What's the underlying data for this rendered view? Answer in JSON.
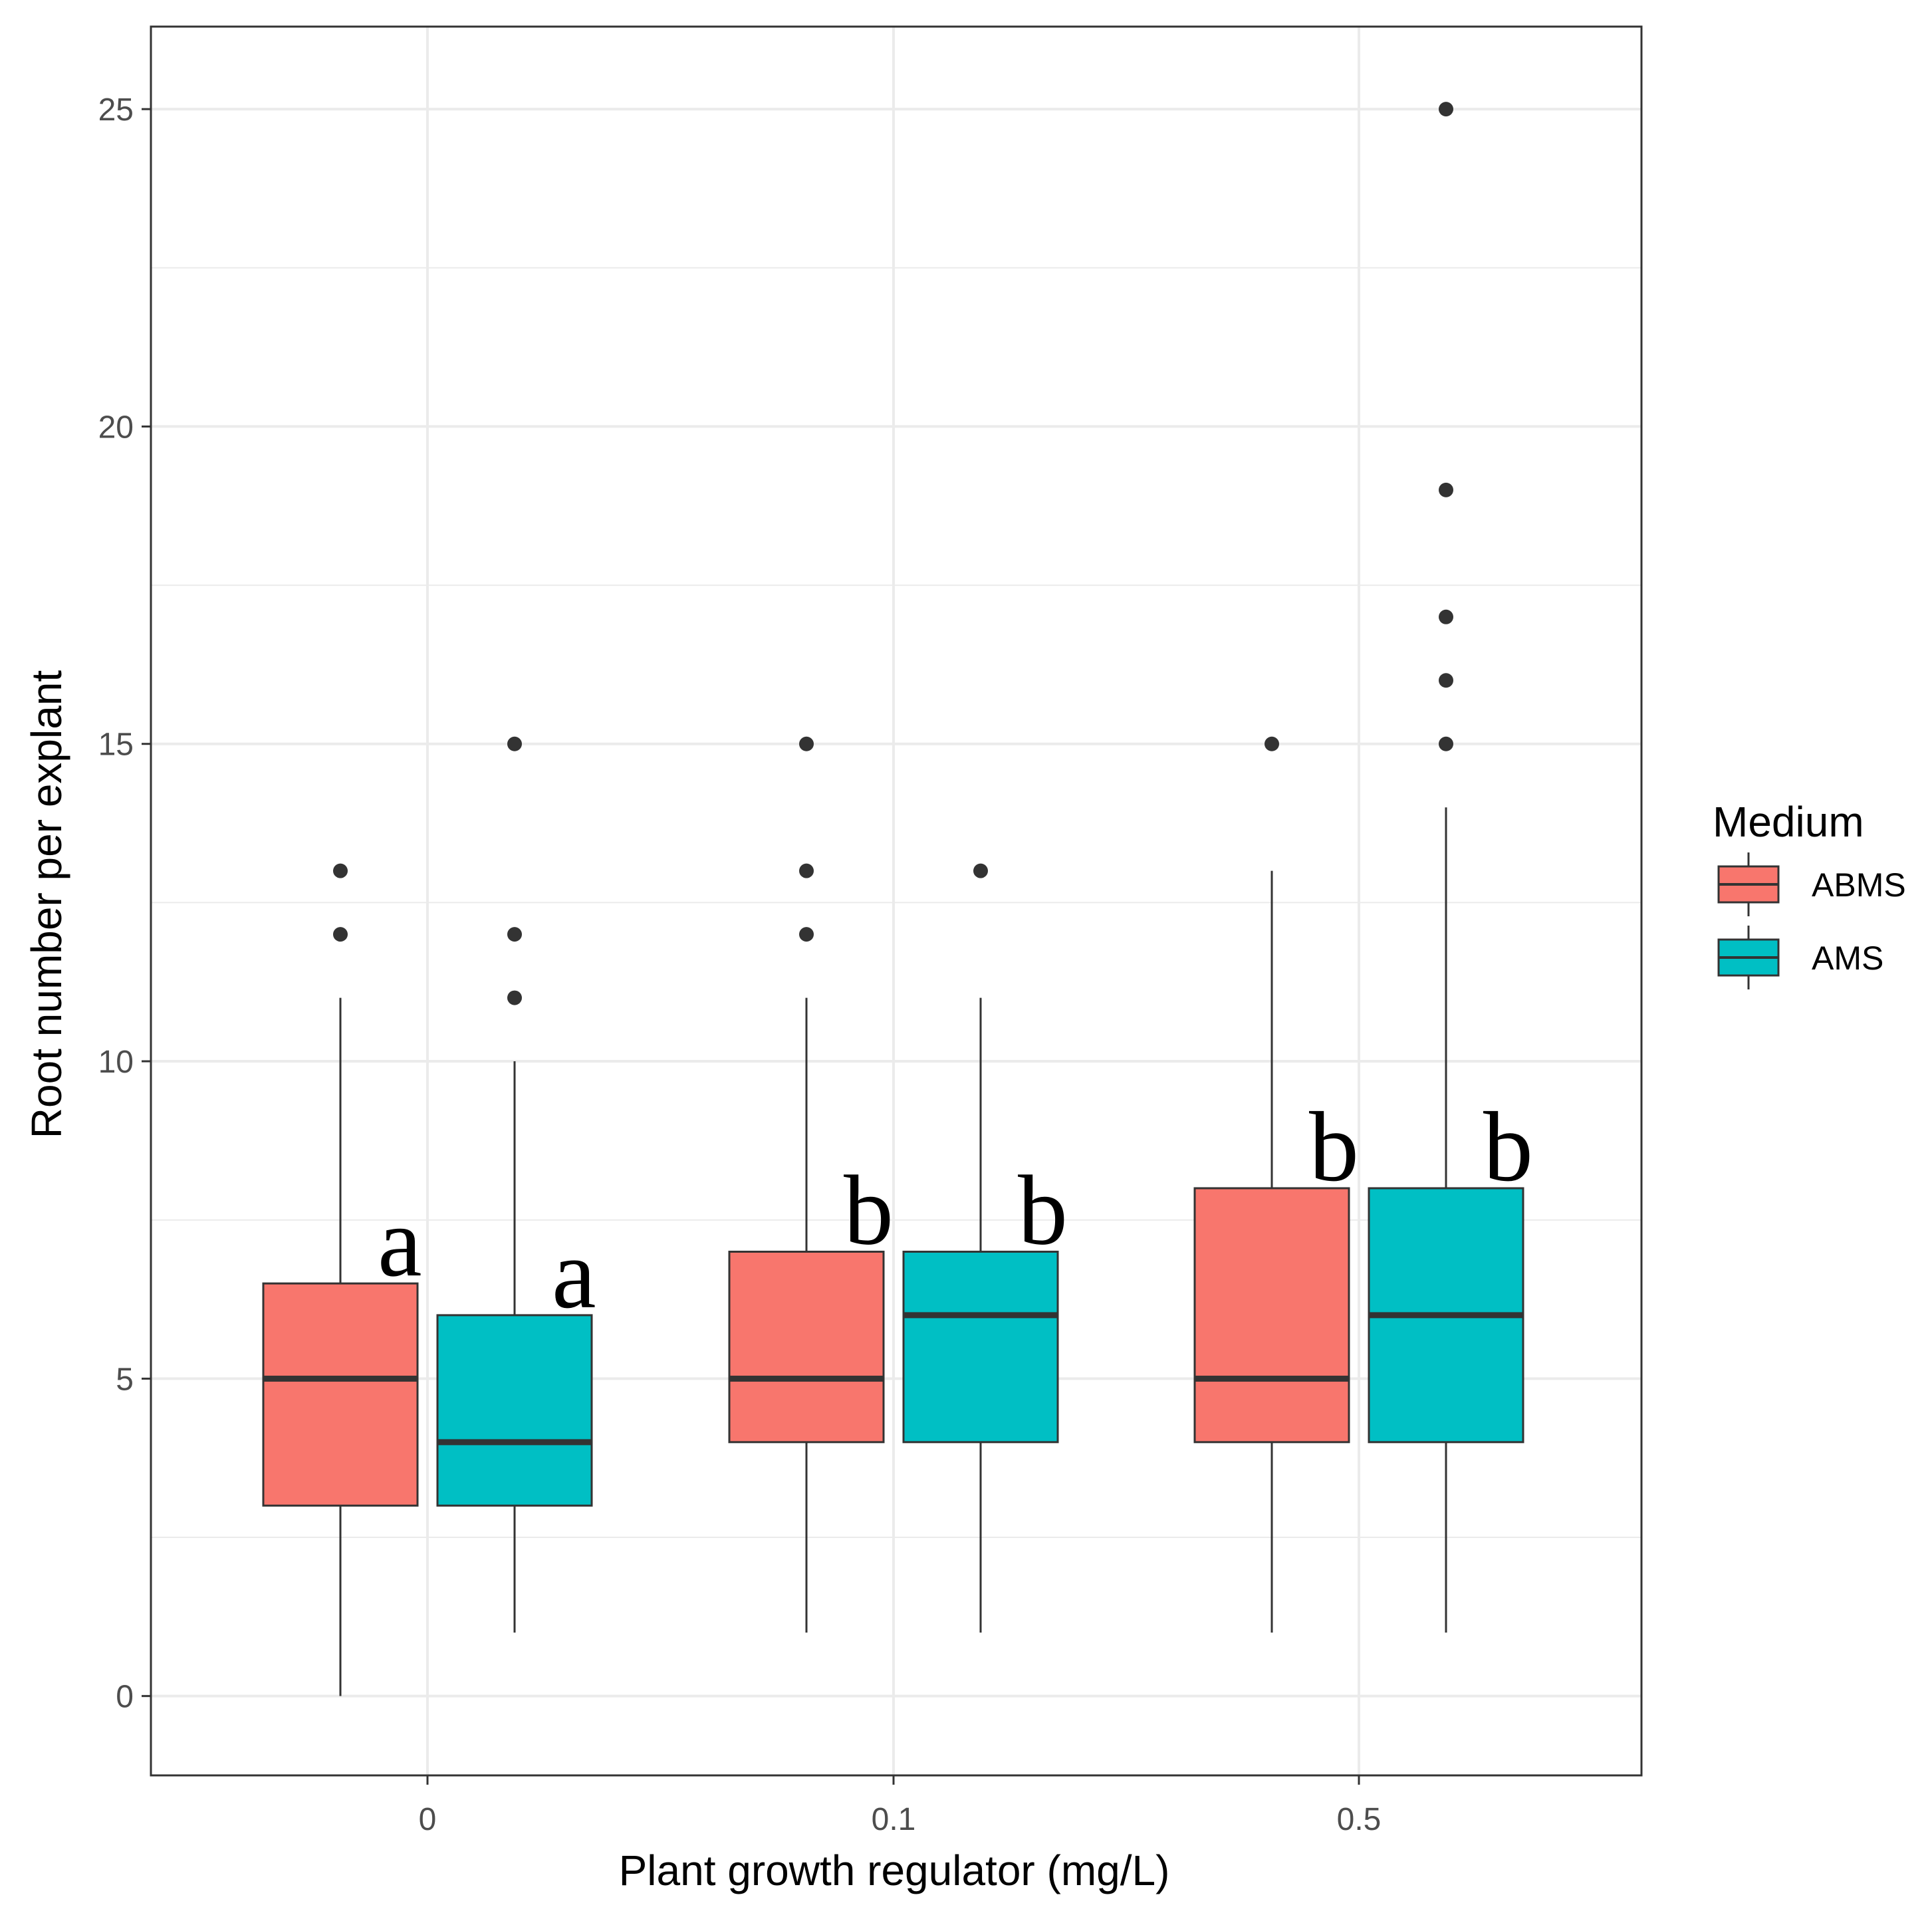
{
  "chart_data": {
    "type": "boxplot",
    "xlabel": "Plant growth regulator (mg/L)",
    "ylabel": "Root number per explant",
    "ylim": [
      -1.25,
      26.3
    ],
    "yticks": [
      0,
      5,
      10,
      15,
      20,
      25
    ],
    "categories": [
      "0",
      "0.1",
      "0.5"
    ],
    "legend": {
      "title": "Medium",
      "position": "right",
      "entries": [
        {
          "name": "ABMS",
          "color": "#F8766D"
        },
        {
          "name": "AMS",
          "color": "#00BFC4"
        }
      ]
    },
    "series": [
      {
        "name": "ABMS",
        "color": "#F8766D",
        "boxes": [
          {
            "category": "0",
            "min": 0,
            "q1": 3,
            "median": 5,
            "q3": 6.5,
            "max": 11,
            "outliers": [
              12,
              13
            ],
            "letter": "a"
          },
          {
            "category": "0.1",
            "min": 1,
            "q1": 4,
            "median": 5,
            "q3": 7,
            "max": 11,
            "outliers": [
              12,
              13,
              15
            ],
            "letter": "b"
          },
          {
            "category": "0.5",
            "min": 1,
            "q1": 4,
            "median": 5,
            "q3": 8,
            "max": 13,
            "outliers": [
              15
            ],
            "letter": "b"
          }
        ]
      },
      {
        "name": "AMS",
        "color": "#00BFC4",
        "boxes": [
          {
            "category": "0",
            "min": 1,
            "q1": 3,
            "median": 4,
            "q3": 6,
            "max": 10,
            "outliers": [
              11,
              12,
              15
            ],
            "letter": "a"
          },
          {
            "category": "0.1",
            "min": 1,
            "q1": 4,
            "median": 6,
            "q3": 7,
            "max": 11,
            "outliers": [
              13
            ],
            "letter": "b"
          },
          {
            "category": "0.5",
            "min": 1,
            "q1": 4,
            "median": 6,
            "q3": 8,
            "max": 14,
            "outliers": [
              15,
              16,
              17,
              19,
              25
            ],
            "letter": "b"
          }
        ]
      }
    ]
  }
}
